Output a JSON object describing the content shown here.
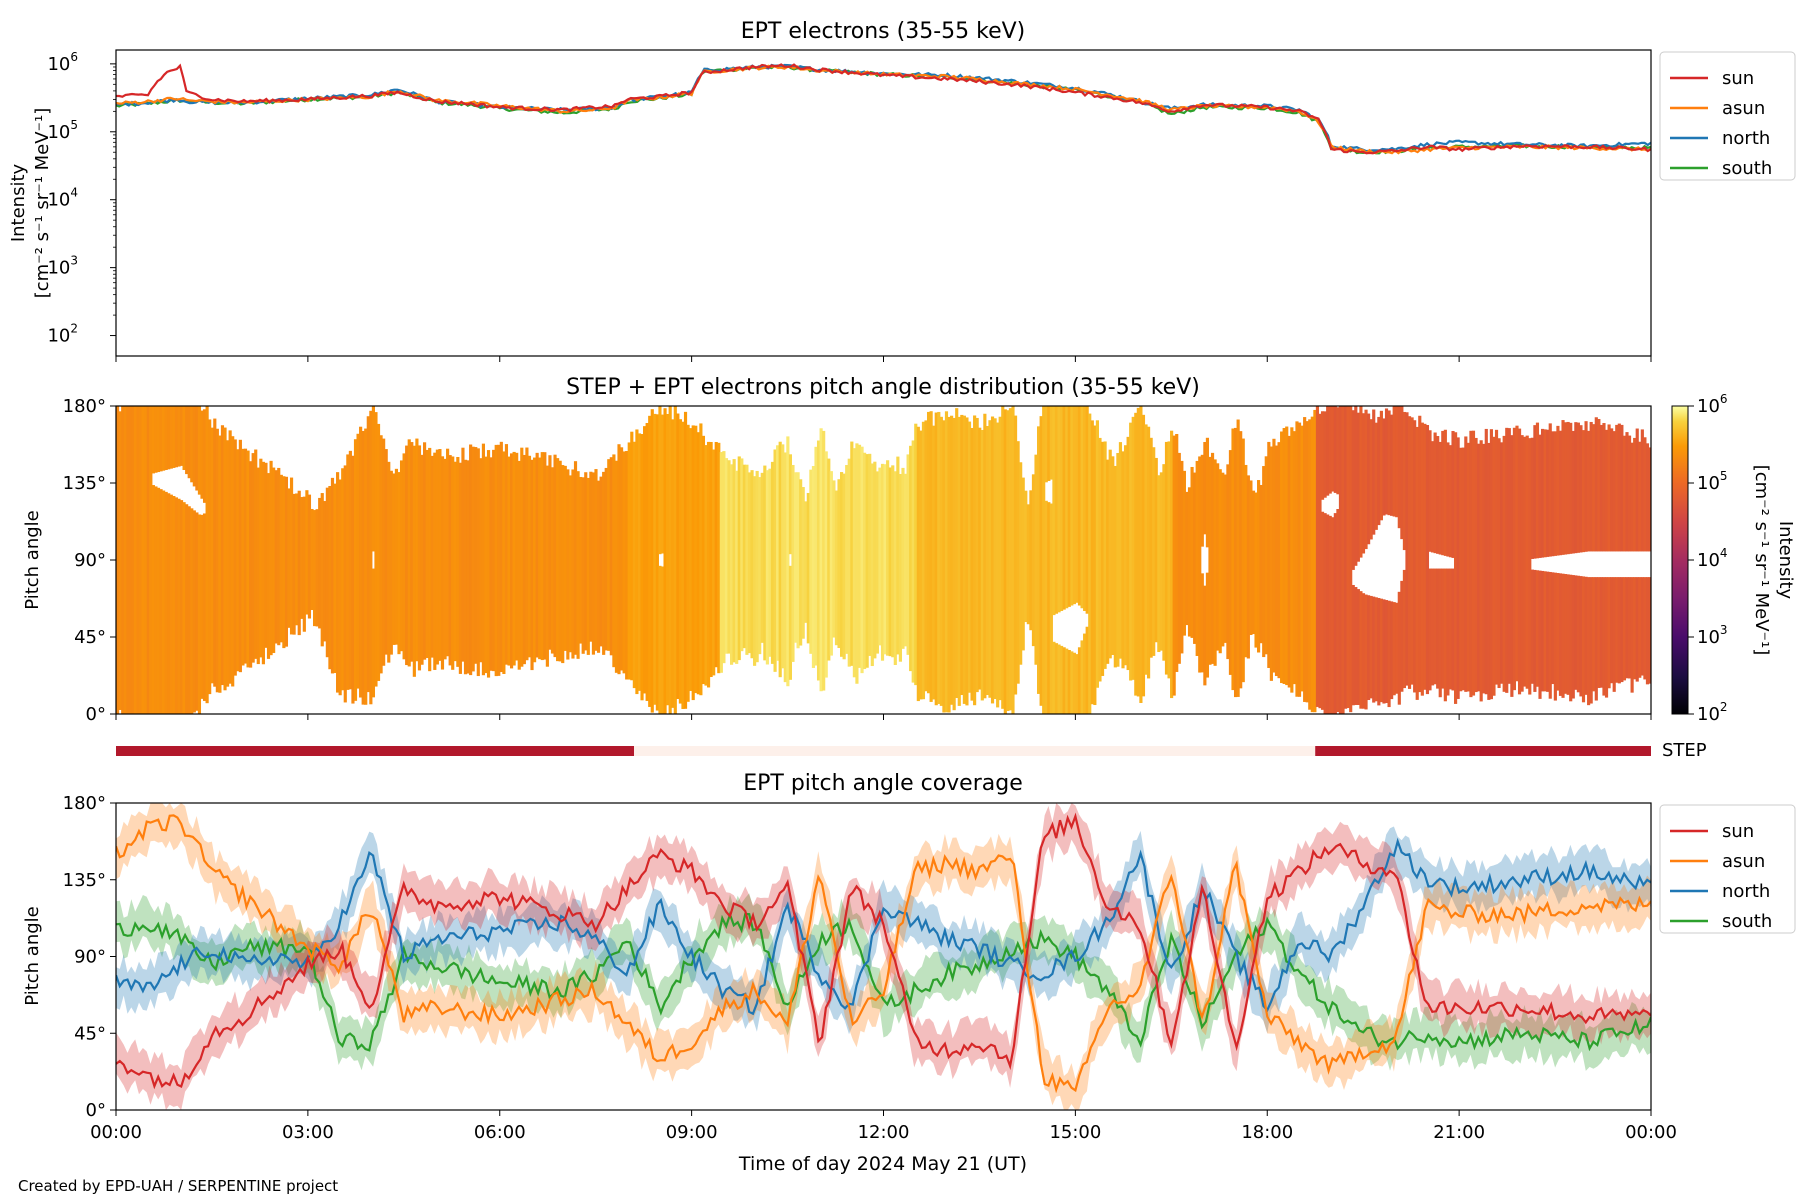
{
  "footer_text": "Created by EPD-UAH / SERPENTINE project",
  "xlabel": "Time of day 2024 May 21 (UT)",
  "x_tick_labels": [
    "00:00",
    "03:00",
    "06:00",
    "09:00",
    "12:00",
    "15:00",
    "18:00",
    "21:00",
    "00:00"
  ],
  "colors": {
    "sun": "#d62728",
    "asun": "#ff7f0e",
    "north": "#1f77b4",
    "south": "#2ca02c",
    "step_on": "#b2182b",
    "step_off": "#fdf0ea"
  },
  "legend": [
    "sun",
    "asun",
    "north",
    "south"
  ],
  "step_bar": {
    "label": "STEP",
    "segments": [
      {
        "state": "on",
        "start_h": 0,
        "end_h": 8.1
      },
      {
        "state": "off",
        "start_h": 8.1,
        "end_h": 18.75
      },
      {
        "state": "on",
        "start_h": 18.75,
        "end_h": 24
      }
    ]
  },
  "colorbar": {
    "label": "Intensity",
    "units": "[cm⁻² s⁻¹ sr⁻¹ MeV⁻¹]",
    "range_exp": [
      2,
      6
    ],
    "tick_exps": [
      2,
      3,
      4,
      5,
      6
    ]
  },
  "chart_data": [
    {
      "type": "line",
      "title": "EPT electrons (35-55 keV)",
      "ylabel": "Intensity",
      "yunits": "[cm⁻² s⁻¹ sr⁻¹ MeV⁻¹]",
      "yscale": "log",
      "ylim": [
        50,
        1600000
      ],
      "y_tick_exps": [
        2,
        3,
        4,
        5,
        6
      ],
      "xlim_hours": [
        0,
        24
      ],
      "x_hours": [
        0,
        0.5,
        0.8,
        1.0,
        1.1,
        1.5,
        2,
        3,
        4,
        4.4,
        5,
        5.5,
        6,
        7,
        7.5,
        7.8,
        8.0,
        8.5,
        9.0,
        9.2,
        10,
        10.5,
        11,
        12,
        13,
        14,
        15,
        16,
        16.5,
        17,
        18,
        18.5,
        18.8,
        19,
        19.5,
        20,
        20.5,
        21,
        22,
        23,
        24
      ],
      "series": [
        {
          "name": "sun",
          "values": [
            330000,
            350000,
            750000,
            900000,
            380000,
            300000,
            280000,
            300000,
            340000,
            380000,
            280000,
            260000,
            230000,
            210000,
            230000,
            240000,
            300000,
            330000,
            380000,
            750000,
            900000,
            950000,
            820000,
            680000,
            600000,
            500000,
            380000,
            270000,
            200000,
            250000,
            230000,
            200000,
            150000,
            55000,
            50000,
            52000,
            60000,
            55000,
            62000,
            60000,
            55000
          ]
        },
        {
          "name": "asun",
          "values": [
            260000,
            280000,
            300000,
            310000,
            290000,
            280000,
            270000,
            300000,
            330000,
            400000,
            290000,
            270000,
            240000,
            200000,
            210000,
            230000,
            290000,
            320000,
            370000,
            760000,
            880000,
            900000,
            800000,
            700000,
            650000,
            530000,
            420000,
            290000,
            210000,
            240000,
            230000,
            200000,
            140000,
            60000,
            52000,
            50000,
            55000,
            58000,
            60000,
            58000,
            55000
          ]
        },
        {
          "name": "north",
          "values": [
            250000,
            270000,
            290000,
            300000,
            280000,
            270000,
            270000,
            310000,
            350000,
            420000,
            280000,
            260000,
            230000,
            210000,
            220000,
            230000,
            290000,
            330000,
            380000,
            800000,
            900000,
            920000,
            820000,
            720000,
            680000,
            560000,
            440000,
            280000,
            220000,
            250000,
            240000,
            210000,
            150000,
            62000,
            55000,
            56000,
            65000,
            70000,
            65000,
            62000,
            68000
          ]
        },
        {
          "name": "south",
          "values": [
            240000,
            260000,
            280000,
            290000,
            280000,
            270000,
            260000,
            300000,
            330000,
            380000,
            270000,
            250000,
            220000,
            190000,
            210000,
            220000,
            280000,
            310000,
            360000,
            780000,
            870000,
            900000,
            800000,
            700000,
            640000,
            520000,
            410000,
            270000,
            180000,
            230000,
            225000,
            190000,
            140000,
            58000,
            50000,
            52000,
            58000,
            60000,
            62000,
            60000,
            58000
          ]
        }
      ]
    },
    {
      "type": "heatmap",
      "title": "STEP + EPT electrons pitch angle distribution (35-55 keV)",
      "ylabel": "Pitch angle",
      "y_tick_labels": [
        "0°",
        "45°",
        "90°",
        "135°",
        "180°"
      ],
      "ylim": [
        0,
        180
      ],
      "xlim_hours": [
        0,
        24
      ],
      "colormap": "inferno",
      "colorscale": "log",
      "clim": [
        100,
        1000000
      ],
      "intensity_segments": [
        {
          "start_h": 0,
          "end_h": 8.0,
          "log10_intensity": 5.35
        },
        {
          "start_h": 8.0,
          "end_h": 9.4,
          "log10_intensity": 5.5
        },
        {
          "start_h": 9.4,
          "end_h": 12.5,
          "log10_intensity": 5.85
        },
        {
          "start_h": 12.5,
          "end_h": 16.5,
          "log10_intensity": 5.65
        },
        {
          "start_h": 16.5,
          "end_h": 18.75,
          "log10_intensity": 5.35
        },
        {
          "start_h": 18.75,
          "end_h": 24,
          "log10_intensity": 4.8
        }
      ]
    },
    {
      "type": "line",
      "title": "EPT pitch angle coverage",
      "ylabel": "Pitch angle",
      "y_tick_labels": [
        "0°",
        "45°",
        "90°",
        "135°",
        "180°"
      ],
      "ylim": [
        0,
        180
      ],
      "xlim_hours": [
        0,
        24
      ],
      "x_hours": [
        0,
        0.5,
        1.0,
        1.5,
        2.0,
        2.5,
        3.0,
        3.5,
        4.0,
        4.5,
        5.0,
        6.0,
        7.0,
        7.5,
        8.0,
        8.5,
        9.0,
        9.5,
        10.0,
        10.5,
        11.0,
        11.5,
        12.0,
        12.5,
        13.0,
        13.5,
        14.0,
        14.5,
        15.0,
        15.5,
        16.0,
        16.5,
        17.0,
        17.5,
        18.0,
        18.5,
        19.0,
        19.5,
        20.0,
        20.5,
        21.0,
        22.0,
        23.0,
        24.0
      ],
      "series": [
        {
          "name": "sun",
          "values": [
            30,
            20,
            15,
            45,
            55,
            70,
            85,
            95,
            60,
            130,
            120,
            125,
            115,
            110,
            130,
            150,
            140,
            120,
            110,
            130,
            40,
            130,
            110,
            40,
            35,
            40,
            30,
            160,
            170,
            120,
            110,
            40,
            130,
            35,
            125,
            140,
            155,
            145,
            140,
            60,
            60,
            60,
            55,
            55
          ]
        },
        {
          "name": "asun",
          "values": [
            150,
            165,
            170,
            140,
            125,
            110,
            95,
            85,
            120,
            55,
            60,
            55,
            65,
            70,
            50,
            30,
            40,
            60,
            70,
            50,
            140,
            50,
            70,
            140,
            145,
            140,
            150,
            20,
            10,
            60,
            70,
            140,
            50,
            145,
            55,
            40,
            25,
            35,
            40,
            120,
            115,
            115,
            120,
            120
          ]
        },
        {
          "name": "north",
          "values": [
            75,
            70,
            85,
            95,
            85,
            90,
            85,
            110,
            150,
            90,
            100,
            105,
            110,
            100,
            80,
            120,
            90,
            70,
            60,
            120,
            80,
            60,
            120,
            110,
            100,
            95,
            85,
            80,
            90,
            110,
            150,
            80,
            130,
            90,
            60,
            100,
            90,
            120,
            155,
            135,
            130,
            135,
            140,
            130
          ]
        },
        {
          "name": "south",
          "values": [
            105,
            110,
            100,
            85,
            95,
            95,
            95,
            40,
            40,
            90,
            85,
            75,
            70,
            80,
            100,
            60,
            90,
            110,
            110,
            60,
            100,
            110,
            60,
            70,
            80,
            85,
            95,
            100,
            90,
            70,
            40,
            100,
            50,
            90,
            110,
            80,
            60,
            45,
            40,
            45,
            40,
            45,
            40,
            50
          ]
        }
      ]
    }
  ]
}
